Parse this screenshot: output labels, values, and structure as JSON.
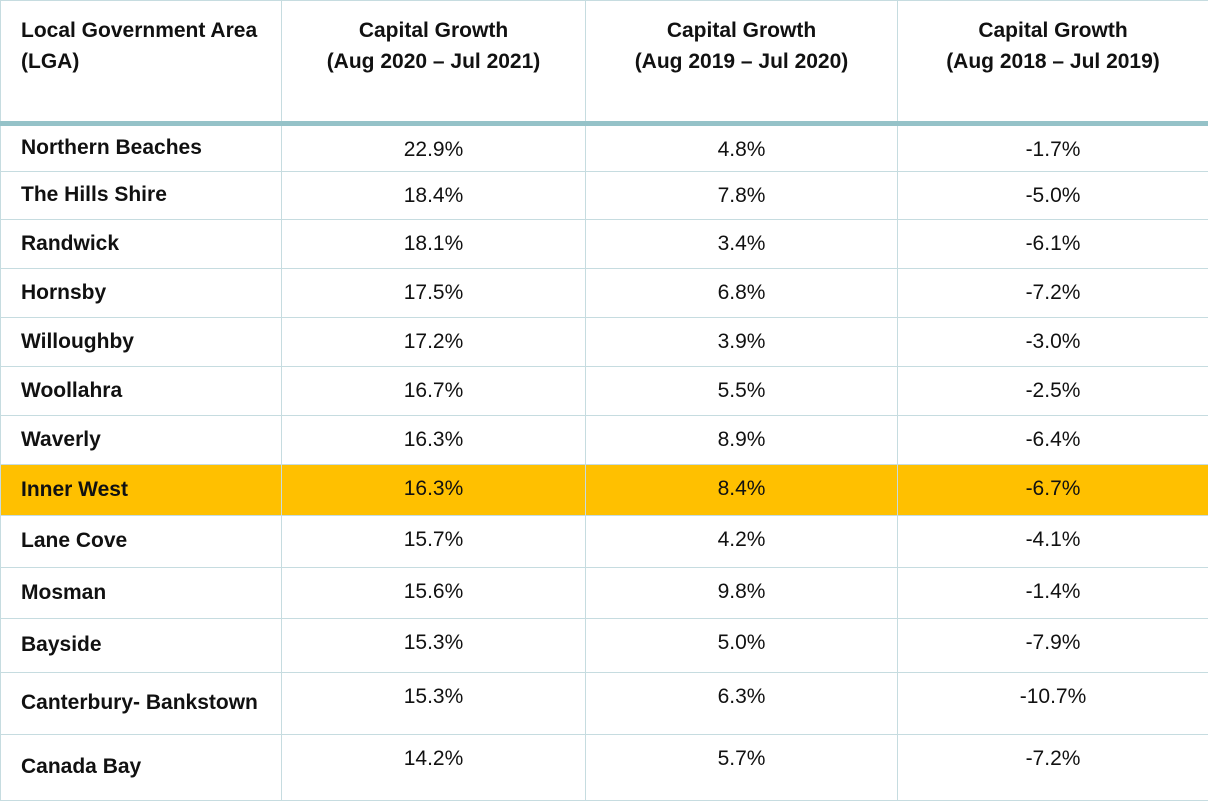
{
  "colors": {
    "highlight": "#FFC000",
    "header_rule": "#95c2c8",
    "gridline": "#c6dce0"
  },
  "table": {
    "header": [
      {
        "line1": "Local Government Area",
        "line2": "(LGA)"
      },
      {
        "line1": "Capital Growth",
        "line2": "(Aug 2020 – Jul 2021)"
      },
      {
        "line1": "Capital Growth",
        "line2": "(Aug 2019 – Jul 2020)"
      },
      {
        "line1": "Capital Growth",
        "line2": "(Aug 2018 – Jul 2019)"
      }
    ],
    "rows": [
      {
        "lga": "Northern Beaches",
        "c1": "22.9%",
        "c2": "4.8%",
        "c3": "-1.7%"
      },
      {
        "lga": "The Hills Shire",
        "c1": "18.4%",
        "c2": "7.8%",
        "c3": "-5.0%"
      },
      {
        "lga": "Randwick",
        "c1": "18.1%",
        "c2": "3.4%",
        "c3": "-6.1%"
      },
      {
        "lga": "Hornsby",
        "c1": "17.5%",
        "c2": "6.8%",
        "c3": "-7.2%"
      },
      {
        "lga": "Willoughby",
        "c1": "17.2%",
        "c2": "3.9%",
        "c3": "-3.0%"
      },
      {
        "lga": "Woollahra",
        "c1": "16.7%",
        "c2": "5.5%",
        "c3": "-2.5%"
      },
      {
        "lga": "Waverly",
        "c1": "16.3%",
        "c2": "8.9%",
        "c3": "-6.4%"
      },
      {
        "lga": "Inner West",
        "c1": "16.3%",
        "c2": "8.4%",
        "c3": "-6.7%"
      },
      {
        "lga": "Lane Cove",
        "c1": "15.7%",
        "c2": "4.2%",
        "c3": "-4.1%"
      },
      {
        "lga": "Mosman",
        "c1": "15.6%",
        "c2": "9.8%",
        "c3": "-1.4%"
      },
      {
        "lga": "Bayside",
        "c1": "15.3%",
        "c2": "5.0%",
        "c3": "-7.9%"
      },
      {
        "lga": "Canterbury- Bankstown",
        "c1": "15.3%",
        "c2": "6.3%",
        "c3": "-10.7%"
      },
      {
        "lga": "Canada Bay",
        "c1": "14.2%",
        "c2": "5.7%",
        "c3": "-7.2%"
      }
    ]
  },
  "chart_data": {
    "type": "table",
    "columns": [
      "Local Government Area (LGA)",
      "Capital Growth (Aug 2020 – Jul 2021)",
      "Capital Growth (Aug 2019 – Jul 2020)",
      "Capital Growth (Aug 2018 – Jul 2019)"
    ],
    "rows": [
      [
        "Northern Beaches",
        22.9,
        4.8,
        -1.7
      ],
      [
        "The Hills Shire",
        18.4,
        7.8,
        -5.0
      ],
      [
        "Randwick",
        18.1,
        3.4,
        -6.1
      ],
      [
        "Hornsby",
        17.5,
        6.8,
        -7.2
      ],
      [
        "Willoughby",
        17.2,
        3.9,
        -3.0
      ],
      [
        "Woollahra",
        16.7,
        5.5,
        -2.5
      ],
      [
        "Waverly",
        16.3,
        8.9,
        -6.4
      ],
      [
        "Inner West",
        16.3,
        8.4,
        -6.7
      ],
      [
        "Lane Cove",
        15.7,
        4.2,
        -4.1
      ],
      [
        "Mosman",
        15.6,
        9.8,
        -1.4
      ],
      [
        "Bayside",
        15.3,
        5.0,
        -7.9
      ],
      [
        "Canterbury- Bankstown",
        15.3,
        6.3,
        -10.7
      ],
      [
        "Canada Bay",
        14.2,
        5.7,
        -7.2
      ]
    ],
    "units": "percent",
    "highlighted_row": "Inner West",
    "highlight_color": "#FFC000"
  }
}
